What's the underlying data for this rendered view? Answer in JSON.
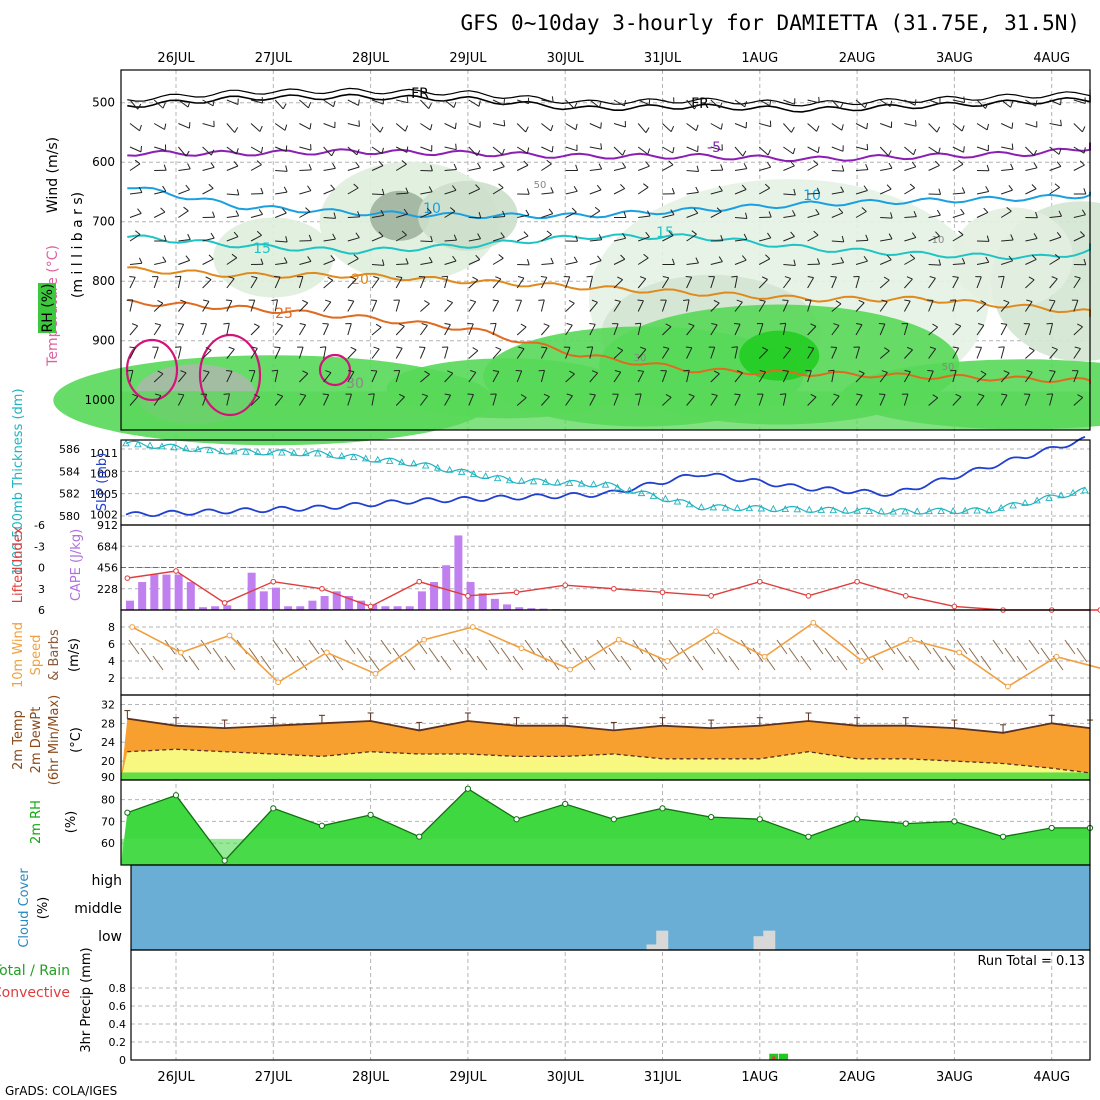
{
  "title": "GFS 0~10day 3-hourly for DAMIETTA (31.75E, 31.5N)",
  "credit": "GrADS: COLA/IGES",
  "colors": {
    "grid": "#b4b4b4",
    "purple": "#8c1eb4",
    "cyan_line": "#1aa0e0",
    "teal": "#1ec4c4",
    "orange_line": "#e08a1e",
    "dark_orange": "#e06a1e",
    "magenta": "#d2147a",
    "slp_blue": "#2040d0",
    "thick_cyan": "#20b4c0",
    "cape_bar": "#c080f0",
    "li_red": "#e03c3c",
    "wind_orange": "#f0a040",
    "temp_fill": "#f7a030",
    "temp_top": "#f06010",
    "dew_fill": "#f8f880",
    "rh_light": "#40d840",
    "rh_dark": "#10a810",
    "cloud_blue": "#6aaed6",
    "precip_green": "#20c820",
    "precip_red": "#e03c3c"
  },
  "chart_data": [
    {
      "type": "heatmap",
      "name": "profile",
      "ylabel_wind": "Wind (m/s)",
      "ylabel_temp": "Temperature (°C)",
      "ylabel_rh": "RH (%)",
      "ylabel_units": "(m i l l i b a r s)",
      "y_ticks": [
        "500",
        "600",
        "700",
        "800",
        "900",
        "1000"
      ],
      "y_values": [
        500,
        600,
        700,
        800,
        900,
        1000
      ],
      "ylim": [
        1050,
        445
      ],
      "x_categories": [
        "26JUL",
        "27JUL",
        "28JUL",
        "29JUL",
        "30JUL",
        "31JUL",
        "1AUG",
        "2AUG",
        "3AUG",
        "4AUG"
      ],
      "isotherm_labels": [
        "FR",
        "FR",
        "-5",
        "10",
        "10",
        "15",
        "15",
        "20",
        "25",
        "30",
        "50",
        "10",
        "30",
        "50"
      ],
      "isotherms": [
        {
          "label": "FR",
          "color": "#000000",
          "level_mb": [
            505,
            492,
            490,
            494,
            510,
            506,
            512,
            505,
            498,
            490
          ]
        },
        {
          "label": "-5",
          "color": "#8c1eb4",
          "level_mb": [
            585,
            585,
            582,
            585,
            590,
            590,
            595,
            590,
            585,
            565
          ]
        },
        {
          "label": "10",
          "color": "#1aa0e0",
          "level_mb": [
            640,
            675,
            685,
            690,
            690,
            680,
            670,
            665,
            660,
            650
          ]
        },
        {
          "label": "15",
          "color": "#1ec4c4",
          "level_mb": [
            725,
            740,
            750,
            740,
            725,
            725,
            745,
            755,
            760,
            740
          ]
        },
        {
          "label": "20",
          "color": "#e08a1e",
          "level_mb": [
            780,
            790,
            790,
            800,
            810,
            820,
            830,
            830,
            845,
            860
          ]
        },
        {
          "label": "25",
          "color": "#e06a1e",
          "level_mb": [
            835,
            845,
            860,
            880,
            925,
            950,
            955,
            960,
            965,
            970
          ]
        }
      ]
    },
    {
      "type": "line",
      "name": "slp_thickness",
      "ylabel_left": "1000-500mb Thickness (dm)",
      "ylabel_right": "SLP (mb)",
      "y_ticks_left": [
        "586",
        "584",
        "582",
        "580"
      ],
      "y_ticks_right": [
        "1011",
        "1008",
        "1005",
        "1002"
      ],
      "ylim_left": [
        579.2,
        586.8
      ],
      "ylim_right": [
        1000.5,
        1012.9
      ],
      "x": [
        0,
        1,
        2,
        3,
        4,
        5,
        6,
        7,
        8,
        9,
        10
      ],
      "series": [
        {
          "name": "SLP",
          "axis": "right",
          "values": [
            1002,
            1002.5,
            1003,
            1004,
            1004.5,
            1005,
            1008,
            1006,
            1005,
            1009,
            1013
          ]
        },
        {
          "name": "Thickness",
          "axis": "left",
          "values": [
            586.5,
            585.8,
            585.6,
            584.7,
            583.2,
            582.8,
            580.8,
            580.6,
            580.4,
            580.5,
            582.3
          ]
        }
      ]
    },
    {
      "type": "bar",
      "name": "cape_li",
      "ylabel_left": "Lifted Index",
      "ylabel_right": "CAPE (J/kg)",
      "y_ticks_left": [
        "-6",
        "-3",
        "0",
        "3",
        "6"
      ],
      "y_ticks_right": [
        "912",
        "684",
        "456",
        "228"
      ],
      "ylim_cape": [
        0,
        912
      ],
      "ylim_li": [
        -6,
        6
      ],
      "cape_x": [
        0.0,
        0.125,
        0.25,
        0.375,
        0.5,
        0.625,
        0.75,
        0.875,
        1.0,
        1.25,
        1.375,
        1.5,
        1.625,
        1.75,
        1.875,
        2.0,
        2.125,
        2.25,
        2.375,
        2.5,
        2.625,
        2.75,
        2.875,
        3.0,
        3.125,
        3.25,
        3.375,
        3.5,
        3.625,
        3.75,
        3.875,
        4.0,
        4.125,
        4.25,
        4.375
      ],
      "cape_values": [
        100,
        300,
        380,
        380,
        380,
        300,
        30,
        40,
        50,
        400,
        200,
        240,
        40,
        40,
        100,
        150,
        200,
        150,
        100,
        60,
        40,
        40,
        40,
        200,
        300,
        480,
        800,
        300,
        180,
        120,
        60,
        30,
        20,
        15,
        10
      ],
      "li_x": [
        0,
        0.5,
        1.0,
        1.5,
        2.0,
        2.5,
        3.0,
        3.5,
        4.0,
        4.5,
        5.0,
        5.5,
        6.0,
        6.5,
        7.0,
        7.5,
        8.0,
        8.5,
        9.0,
        9.5,
        10.0
      ],
      "li_values": [
        1.5,
        0.5,
        5.0,
        2.0,
        3.0,
        5.5,
        2.0,
        4.0,
        3.5,
        2.5,
        3.0,
        3.5,
        4.0,
        2.0,
        4.0,
        2.0,
        4.0,
        5.5,
        6.0,
        6.0,
        6.0
      ]
    },
    {
      "type": "line",
      "name": "wind10m",
      "ylabel_a": "10m Wind",
      "ylabel_b": "Speed",
      "ylabel_c": "& Barbs",
      "ylabel_units": "(m/s)",
      "y_ticks": [
        "8",
        "6",
        "4",
        "2"
      ],
      "ylim": [
        0,
        10
      ],
      "x": [
        0,
        0.5,
        1.0,
        1.5,
        2.0,
        2.5,
        3.0,
        3.5,
        4.0,
        4.5,
        5.0,
        5.5,
        6.0,
        6.5,
        7.0,
        7.5,
        8.0,
        8.5,
        9.0,
        9.5,
        10.0
      ],
      "values": [
        8.0,
        5.0,
        7.0,
        1.5,
        5.0,
        2.5,
        6.5,
        8.0,
        5.5,
        3.0,
        6.5,
        4.0,
        7.5,
        4.5,
        8.5,
        4.0,
        6.5,
        5.0,
        1.0,
        4.5,
        3.0
      ]
    },
    {
      "type": "area",
      "name": "temp2m",
      "ylabel_a": "2m Temp",
      "ylabel_b": "2m DewPt",
      "ylabel_c": "(6hr Min/Max)",
      "ylabel_units": "(°C)",
      "y_ticks": [
        "32",
        "28",
        "24",
        "20",
        "90"
      ],
      "ylim": [
        16,
        34
      ],
      "x": [
        0,
        0.5,
        1.0,
        1.5,
        2.0,
        2.5,
        3.0,
        3.5,
        4.0,
        4.5,
        5.0,
        5.5,
        6.0,
        6.5,
        7.0,
        7.5,
        8.0,
        8.5,
        9.0,
        9.5,
        10.0
      ],
      "temp": [
        29.0,
        27.5,
        27.0,
        27.5,
        28.0,
        28.5,
        26.5,
        28.5,
        27.5,
        27.5,
        26.5,
        27.5,
        27.0,
        27.5,
        28.5,
        27.5,
        27.5,
        27.0,
        26.0,
        28.0,
        27.0
      ],
      "dewpoint": [
        22.0,
        22.5,
        22.0,
        21.5,
        21.0,
        22.0,
        21.5,
        21.5,
        21.0,
        21.0,
        21.5,
        20.5,
        20.5,
        20.5,
        22.0,
        20.5,
        20.5,
        20.0,
        19.5,
        18.5,
        17.5
      ]
    },
    {
      "type": "area",
      "name": "rh2m",
      "ylabel": "2m RH",
      "ylabel_units": "(%)",
      "y_ticks": [
        "80",
        "70",
        "60"
      ],
      "ylim": [
        50,
        89
      ],
      "x": [
        0,
        0.5,
        1.0,
        1.5,
        2.0,
        2.5,
        3.0,
        3.5,
        4.0,
        4.5,
        5.0,
        5.5,
        6.0,
        6.5,
        7.0,
        7.5,
        8.0,
        8.5,
        9.0,
        9.5,
        10.0
      ],
      "values": [
        74,
        82,
        52,
        76,
        68,
        73,
        63,
        85,
        71,
        78,
        71,
        76,
        72,
        71,
        63,
        71,
        69,
        70,
        63,
        67,
        67
      ]
    },
    {
      "type": "bar",
      "name": "cloud",
      "ylabel": "Cloud Cover",
      "ylabel_units": "(%)",
      "levels": [
        "high",
        "middle",
        "low"
      ],
      "low_cloud_x": [
        5.0,
        5.1,
        6.1,
        6.2
      ],
      "low_cloud_values": [
        10,
        35,
        25,
        35
      ]
    },
    {
      "type": "bar",
      "name": "precip",
      "ylabel_a": "Total / Rain",
      "ylabel_b": "Convective",
      "ylabel_units": "3hr Precip (mm)",
      "run_total": "Run Total = 0.13",
      "y_ticks": [
        "0.8",
        "0.6",
        "0.4",
        "0.2",
        "0"
      ],
      "ylim": [
        0,
        1.0
      ],
      "x": [
        6.2,
        6.3
      ],
      "total": [
        0.07,
        0.07
      ],
      "convective": [
        0.04,
        0.0
      ]
    }
  ]
}
